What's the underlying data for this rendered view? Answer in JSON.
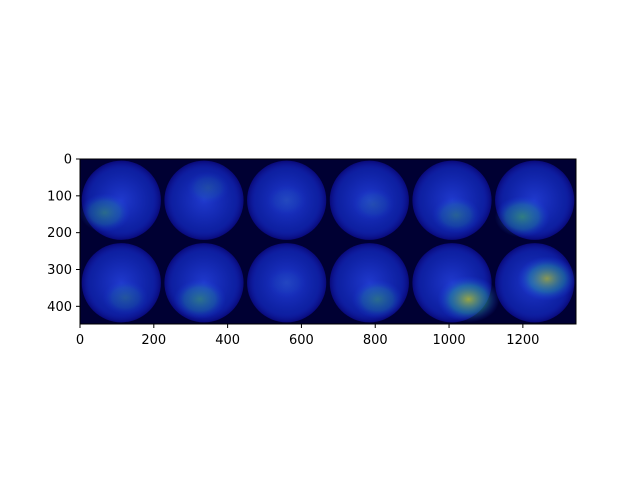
{
  "figure": {
    "image_description": "",
    "grid": {
      "rows": 2,
      "cols": 6
    },
    "x_ticks": [
      "0",
      "200",
      "400",
      "600",
      "800",
      "1000",
      "1200"
    ],
    "y_ticks": [
      "0",
      "100",
      "200",
      "300",
      "400"
    ],
    "x_range": [
      0,
      1344
    ],
    "y_range": [
      448,
      0
    ]
  },
  "colors": {
    "background": "#000033",
    "glow": "#1a3cff",
    "hot_green": "#3fa86a",
    "hot_yellow": "#a7b13a"
  },
  "tiles": [
    {
      "name": "tile-r1c1",
      "intensity": 0.55,
      "hx": 0.3,
      "hy": 0.65
    },
    {
      "name": "tile-r1c2",
      "intensity": 0.25,
      "hx": 0.55,
      "hy": 0.35
    },
    {
      "name": "tile-r1c3",
      "intensity": 0.15,
      "hx": 0.5,
      "hy": 0.5
    },
    {
      "name": "tile-r1c4",
      "intensity": 0.22,
      "hx": 0.55,
      "hy": 0.55
    },
    {
      "name": "tile-r1c5",
      "intensity": 0.45,
      "hx": 0.55,
      "hy": 0.68
    },
    {
      "name": "tile-r1c6",
      "intensity": 0.7,
      "hx": 0.35,
      "hy": 0.7
    },
    {
      "name": "tile-r2c1",
      "intensity": 0.35,
      "hx": 0.55,
      "hy": 0.68
    },
    {
      "name": "tile-r2c2",
      "intensity": 0.6,
      "hx": 0.45,
      "hy": 0.7
    },
    {
      "name": "tile-r2c3",
      "intensity": 0.12,
      "hx": 0.5,
      "hy": 0.5
    },
    {
      "name": "tile-r2c4",
      "intensity": 0.55,
      "hx": 0.6,
      "hy": 0.7
    },
    {
      "name": "tile-r2c5",
      "intensity": 0.95,
      "hx": 0.7,
      "hy": 0.7
    },
    {
      "name": "tile-r2c6",
      "intensity": 0.85,
      "hx": 0.65,
      "hy": 0.45
    }
  ]
}
